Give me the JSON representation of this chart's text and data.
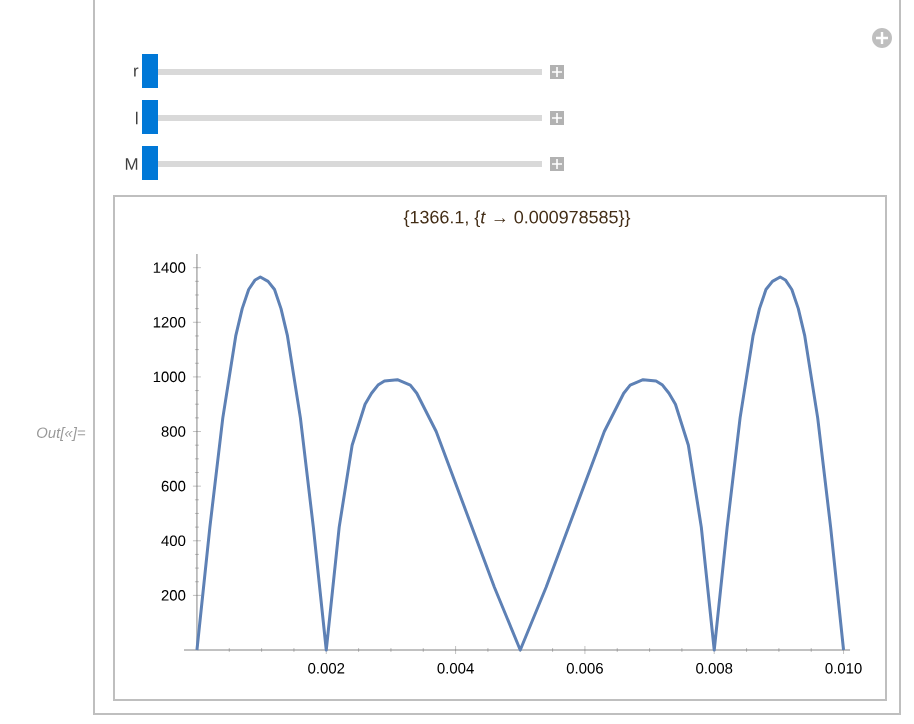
{
  "chart_data": {
    "type": "line",
    "title": "{1366.1, {*t* → 0.000978585}}",
    "annotations": [
      "r",
      "l",
      "M",
      "Out[«]="
    ],
    "x": [
      0,
      0.0002,
      0.0004,
      0.0006,
      0.0007,
      0.0008,
      0.0009,
      0.00098,
      0.0011,
      0.0012,
      0.0013,
      0.0014,
      0.0016,
      0.0018,
      0.002,
      0.0022,
      0.0024,
      0.0026,
      0.0027,
      0.0028,
      0.0029,
      0.0031,
      0.0033,
      0.0034,
      0.0037,
      0.004,
      0.0043,
      0.0046,
      0.005,
      0.0054,
      0.0057,
      0.006,
      0.0063,
      0.0066,
      0.0067,
      0.0069,
      0.0071,
      0.0072,
      0.0073,
      0.0074,
      0.0076,
      0.0078,
      0.008,
      0.0082,
      0.0084,
      0.0086,
      0.0087,
      0.0088,
      0.0089,
      0.00902,
      0.0091,
      0.0092,
      0.0093,
      0.0094,
      0.0096,
      0.0098,
      0.01
    ],
    "values": [
      0,
      450,
      850,
      1150,
      1250,
      1320,
      1355,
      1366,
      1350,
      1320,
      1250,
      1150,
      850,
      450,
      0,
      450,
      750,
      900,
      940,
      970,
      985,
      990,
      970,
      940,
      800,
      610,
      420,
      230,
      0,
      230,
      420,
      610,
      800,
      940,
      970,
      990,
      985,
      970,
      940,
      900,
      750,
      450,
      0,
      450,
      850,
      1150,
      1250,
      1320,
      1350,
      1366,
      1355,
      1320,
      1250,
      1150,
      850,
      450,
      0
    ],
    "color": "#5e81b5",
    "xlim": [
      -0.0002,
      0.0101
    ],
    "ylim": [
      0,
      1450
    ],
    "xticks": [
      {
        "value": 0,
        "label": null
      },
      0.002,
      0.004,
      0.006,
      0.008,
      {
        "value": 0.01,
        "label": "0.010"
      }
    ],
    "yticks": [
      200,
      400,
      600,
      800,
      1000,
      1200,
      1400
    ]
  }
}
